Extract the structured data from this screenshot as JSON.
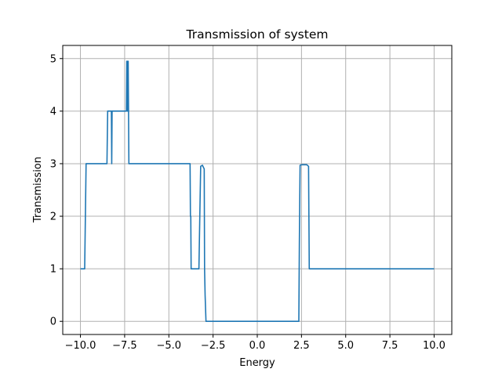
{
  "chart_data": {
    "type": "line",
    "title": "Transmission of system",
    "xlabel": "Energy",
    "ylabel": "Transmission",
    "xlim": [
      -11.0,
      11.0
    ],
    "ylim": [
      -0.25,
      5.25
    ],
    "xticks": [
      -10.0,
      -7.5,
      -5.0,
      -2.5,
      0.0,
      2.5,
      5.0,
      7.5,
      10.0
    ],
    "xtick_labels": [
      "−10.0",
      "−7.5",
      "−5.0",
      "−2.5",
      "0.0",
      "2.5",
      "5.0",
      "7.5",
      "10.0"
    ],
    "yticks": [
      0,
      1,
      2,
      3,
      4,
      5
    ],
    "ytick_labels": [
      "0",
      "1",
      "2",
      "3",
      "4",
      "5"
    ],
    "grid": true,
    "series": [
      {
        "color": "#1f77b4",
        "x": [
          -10.0,
          -9.76,
          -9.72,
          -9.68,
          -8.5,
          -8.46,
          -8.25,
          -8.23,
          -8.21,
          -8.19,
          -7.4,
          -7.38,
          -7.36,
          -7.34,
          -7.32,
          -7.3,
          -7.28,
          -7.26,
          -6.0,
          -4.5,
          -3.8,
          -3.78,
          -3.76,
          -3.74,
          -3.72,
          -3.7,
          -3.3,
          -3.25,
          -3.2,
          -3.1,
          -3.0,
          -2.98,
          -2.95,
          -2.9,
          0.0,
          2.35,
          2.38,
          2.42,
          2.5,
          2.8,
          2.9,
          2.94,
          3.0,
          5.0,
          10.0
        ],
        "y": [
          1.0,
          1.0,
          2.0,
          3.0,
          3.0,
          4.0,
          4.0,
          3.0,
          4.0,
          4.0,
          4.0,
          4.95,
          4.95,
          4.0,
          4.95,
          4.95,
          4.0,
          3.0,
          3.0,
          3.0,
          3.0,
          2.0,
          2.0,
          1.0,
          1.0,
          1.0,
          1.0,
          2.0,
          2.95,
          2.97,
          2.9,
          1.0,
          0.5,
          0.0,
          0.0,
          0.0,
          1.5,
          2.97,
          2.98,
          2.98,
          2.95,
          1.0,
          1.0,
          1.0,
          1.0
        ]
      }
    ]
  }
}
